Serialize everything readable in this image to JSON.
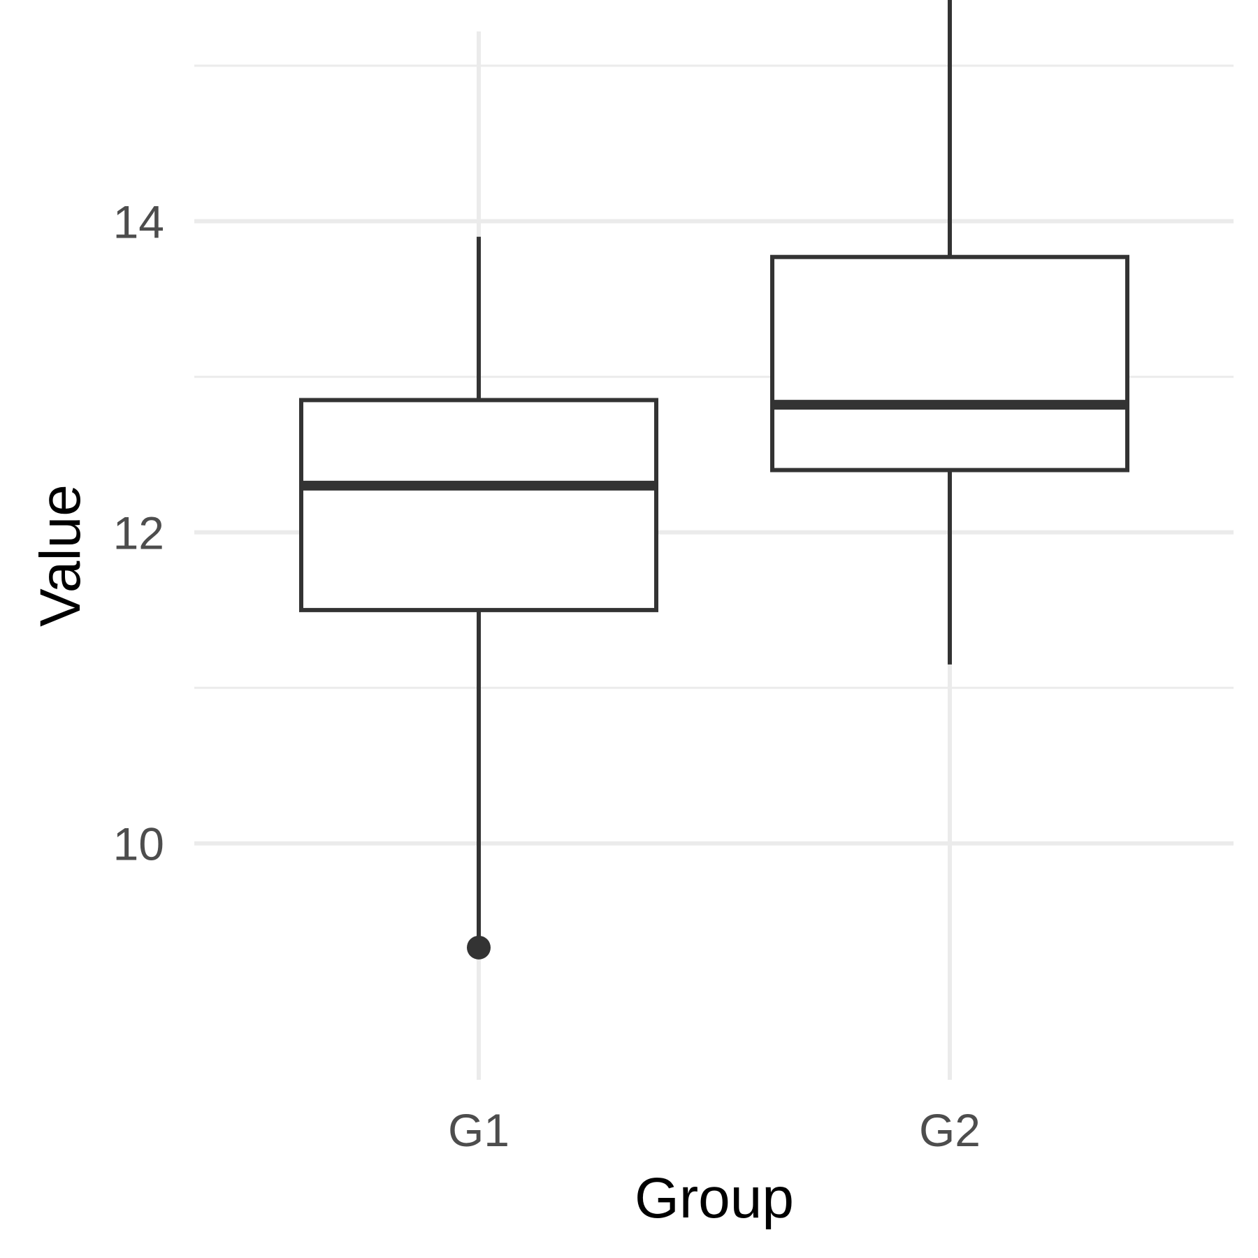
{
  "chart_data": {
    "type": "boxplot",
    "xlabel": "Group",
    "ylabel": "Value",
    "categories": [
      "G1",
      "G2"
    ],
    "ylim": [
      8.48,
      15.22
    ],
    "y_major_ticks": [
      10,
      12,
      14
    ],
    "y_minor_ticks": [
      11,
      13,
      15
    ],
    "grid": true,
    "legend": "none",
    "colors": {
      "box_line": "#333333",
      "box_fill": "#ffffff",
      "grid": "#ebebeb"
    },
    "boxes": [
      {
        "category": "G1",
        "whisker_low": 9.4,
        "q1": 11.5,
        "median": 12.3,
        "q3": 12.85,
        "whisker_high": 13.9,
        "outliers": [
          9.33
        ]
      },
      {
        "category": "G2",
        "whisker_low": 11.15,
        "q1": 12.4,
        "median": 12.82,
        "q3": 13.77,
        "whisker_high": 15.45,
        "outliers": []
      }
    ]
  }
}
